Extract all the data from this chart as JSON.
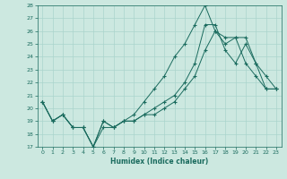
{
  "xlabel": "Humidex (Indice chaleur)",
  "xlim": [
    -0.5,
    23.5
  ],
  "ylim": [
    17,
    28
  ],
  "yticks": [
    17,
    18,
    19,
    20,
    21,
    22,
    23,
    24,
    25,
    26,
    27,
    28
  ],
  "xticks": [
    0,
    1,
    2,
    3,
    4,
    5,
    6,
    7,
    8,
    9,
    10,
    11,
    12,
    13,
    14,
    15,
    16,
    17,
    18,
    19,
    20,
    21,
    22,
    23
  ],
  "bg_color": "#cce8e0",
  "line_color": "#1a6b5e",
  "grid_color": "#aad4cc",
  "line1_x": [
    0,
    1,
    2,
    3,
    4,
    5,
    6,
    7,
    8,
    9,
    10,
    11,
    12,
    13,
    14,
    15,
    16,
    17,
    18,
    19,
    20,
    21,
    22,
    23
  ],
  "line1_y": [
    20.5,
    19.0,
    19.5,
    18.5,
    18.5,
    17.0,
    18.5,
    18.5,
    19.0,
    19.0,
    19.5,
    19.5,
    20.0,
    20.5,
    21.5,
    22.5,
    24.5,
    26.0,
    25.5,
    25.5,
    25.5,
    23.5,
    21.5,
    21.5
  ],
  "line2_x": [
    0,
    1,
    2,
    3,
    4,
    5,
    6,
    7,
    8,
    9,
    10,
    11,
    12,
    13,
    14,
    15,
    16,
    17,
    18,
    19,
    20,
    21,
    22,
    23
  ],
  "line2_y": [
    20.5,
    19.0,
    19.5,
    18.5,
    18.5,
    17.0,
    19.0,
    18.5,
    19.0,
    19.5,
    20.5,
    21.5,
    22.5,
    24.0,
    25.0,
    26.5,
    28.0,
    26.0,
    25.0,
    25.5,
    23.5,
    22.5,
    21.5,
    21.5
  ],
  "line3_x": [
    0,
    1,
    2,
    3,
    4,
    5,
    6,
    7,
    8,
    9,
    10,
    11,
    12,
    13,
    14,
    15,
    16,
    17,
    18,
    19,
    20,
    21,
    22,
    23
  ],
  "line3_y": [
    20.5,
    19.0,
    19.5,
    18.5,
    18.5,
    17.0,
    19.0,
    18.5,
    19.0,
    19.0,
    19.5,
    20.0,
    20.5,
    21.0,
    22.0,
    23.5,
    26.5,
    26.5,
    24.5,
    23.5,
    25.0,
    23.5,
    22.5,
    21.5
  ]
}
